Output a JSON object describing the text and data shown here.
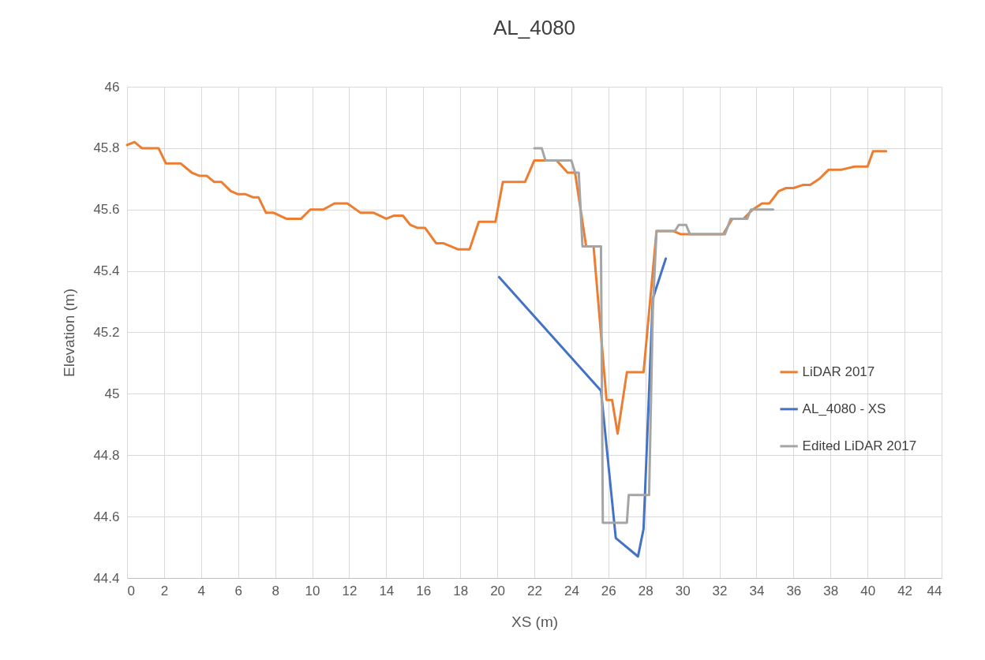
{
  "chart_data": {
    "type": "line",
    "title": "AL_4080",
    "xlabel": "XS (m)",
    "ylabel": "Elevation (m)",
    "xlim": [
      0,
      44
    ],
    "xticks": [
      0,
      2,
      4,
      6,
      8,
      10,
      12,
      14,
      16,
      18,
      20,
      22,
      24,
      26,
      28,
      30,
      32,
      34,
      36,
      38,
      40,
      42,
      44
    ],
    "ylim": [
      44.4,
      46
    ],
    "yticks": [
      44.4,
      44.6,
      44.8,
      45,
      45.2,
      45.4,
      45.6,
      45.8,
      46
    ],
    "grid": true,
    "legend": "right",
    "marker": "none",
    "line_style": "solid",
    "series": [
      {
        "name": "LiDAR 2017",
        "color": "#ed7d31",
        "x": [
          0,
          0.4,
          0.8,
          1.7,
          2.1,
          2.9,
          3.5,
          3.9,
          4.3,
          4.7,
          5.1,
          5.6,
          6.0,
          6.4,
          6.8,
          7.1,
          7.5,
          7.9,
          8.6,
          9.4,
          9.9,
          10.6,
          11.2,
          11.9,
          12.6,
          13.3,
          14.0,
          14.4,
          14.9,
          15.3,
          15.7,
          16.1,
          16.7,
          17.1,
          17.9,
          18.5,
          19.0,
          19.9,
          20.3,
          21.5,
          22.0,
          23.2,
          23.8,
          24.2,
          24.8,
          25.2,
          25.9,
          26.2,
          26.5,
          27.0,
          27.9,
          28.6,
          29.5,
          29.9,
          30.5,
          32.2,
          32.7,
          33.3,
          33.8,
          34.3,
          34.7,
          35.2,
          35.6,
          36.0,
          36.5,
          36.9,
          37.4,
          37.9,
          38.6,
          39.3,
          40.0,
          40.3,
          41.0
        ],
        "values": [
          45.81,
          45.82,
          45.8,
          45.8,
          45.75,
          45.75,
          45.72,
          45.71,
          45.71,
          45.69,
          45.69,
          45.66,
          45.65,
          45.65,
          45.64,
          45.64,
          45.59,
          45.59,
          45.57,
          45.57,
          45.6,
          45.6,
          45.62,
          45.62,
          45.59,
          45.59,
          45.57,
          45.58,
          45.58,
          45.55,
          45.54,
          45.54,
          45.49,
          45.49,
          45.47,
          45.47,
          45.56,
          45.56,
          45.69,
          45.69,
          45.76,
          45.76,
          45.72,
          45.72,
          45.48,
          45.48,
          44.98,
          44.98,
          44.87,
          45.07,
          45.07,
          45.53,
          45.53,
          45.52,
          45.52,
          45.52,
          45.57,
          45.57,
          45.6,
          45.62,
          45.62,
          45.66,
          45.67,
          45.67,
          45.68,
          45.68,
          45.7,
          45.73,
          45.73,
          45.74,
          45.74,
          45.79,
          45.79
        ]
      },
      {
        "name": "AL_4080 - XS",
        "color": "#4472c4",
        "x": [
          20.1,
          25.6,
          26.4,
          27.6,
          27.9,
          28.4,
          29.1
        ],
        "values": [
          45.38,
          45.01,
          44.53,
          44.47,
          44.56,
          45.31,
          45.44
        ]
      },
      {
        "name": "Edited LiDAR 2017",
        "color": "#a5a5a5",
        "x": [
          22.0,
          22.4,
          22.6,
          24.0,
          24.2,
          24.4,
          24.6,
          25.6,
          25.7,
          27.0,
          27.1,
          28.2,
          28.4,
          28.6,
          29.6,
          29.8,
          30.2,
          30.4,
          32.3,
          32.6,
          33.5,
          33.7,
          34.9
        ],
        "values": [
          45.8,
          45.8,
          45.76,
          45.76,
          45.72,
          45.72,
          45.48,
          45.48,
          44.58,
          44.58,
          44.67,
          44.67,
          45.27,
          45.53,
          45.53,
          45.55,
          45.55,
          45.52,
          45.52,
          45.57,
          45.57,
          45.6,
          45.6
        ]
      }
    ]
  }
}
